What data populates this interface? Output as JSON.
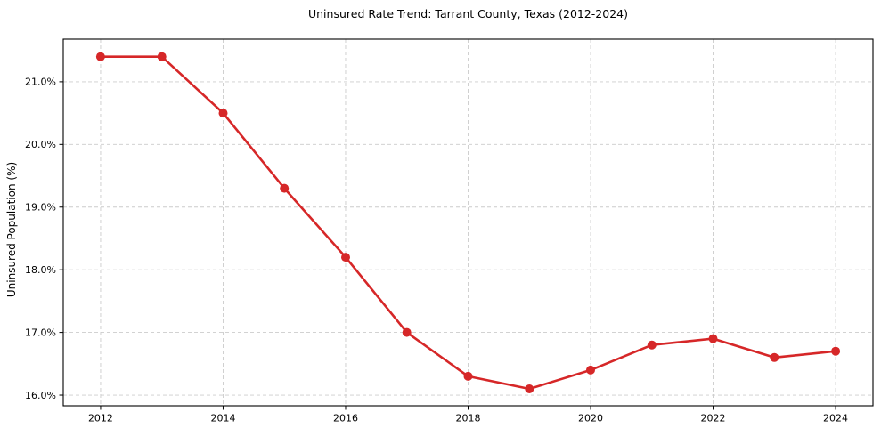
{
  "chart_data": {
    "type": "line",
    "title": "Uninsured Rate Trend: Tarrant County, Texas (2012-2024)",
    "xlabel": "",
    "ylabel": "Uninsured Population (%)",
    "x": [
      2012,
      2013,
      2014,
      2015,
      2016,
      2017,
      2018,
      2019,
      2020,
      2021,
      2022,
      2023,
      2024
    ],
    "values": [
      21.4,
      21.4,
      20.5,
      19.3,
      18.2,
      17.0,
      16.3,
      16.1,
      16.4,
      16.8,
      16.9,
      16.6,
      16.7
    ],
    "xtick_values": [
      2012,
      2014,
      2016,
      2018,
      2020,
      2022,
      2024
    ],
    "xtick_labels": [
      "2012",
      "2014",
      "2016",
      "2018",
      "2020",
      "2022",
      "2024"
    ],
    "ytick_values": [
      16.0,
      17.0,
      18.0,
      19.0,
      20.0,
      21.0
    ],
    "ytick_labels": [
      "16.0%",
      "17.0%",
      "18.0%",
      "19.0%",
      "20.0%",
      "21.0%"
    ],
    "xlim": [
      2011.39,
      2024.61
    ],
    "ylim": [
      15.83,
      21.68
    ],
    "grid": true,
    "grid_style": "dashed",
    "legend": false,
    "line_color": "#d62728",
    "marker": "circle",
    "marker_color": "#d62728",
    "grid_color": "#cccccc",
    "axis_color": "#000000",
    "text_color": "#000000",
    "background_color": "#ffffff"
  }
}
